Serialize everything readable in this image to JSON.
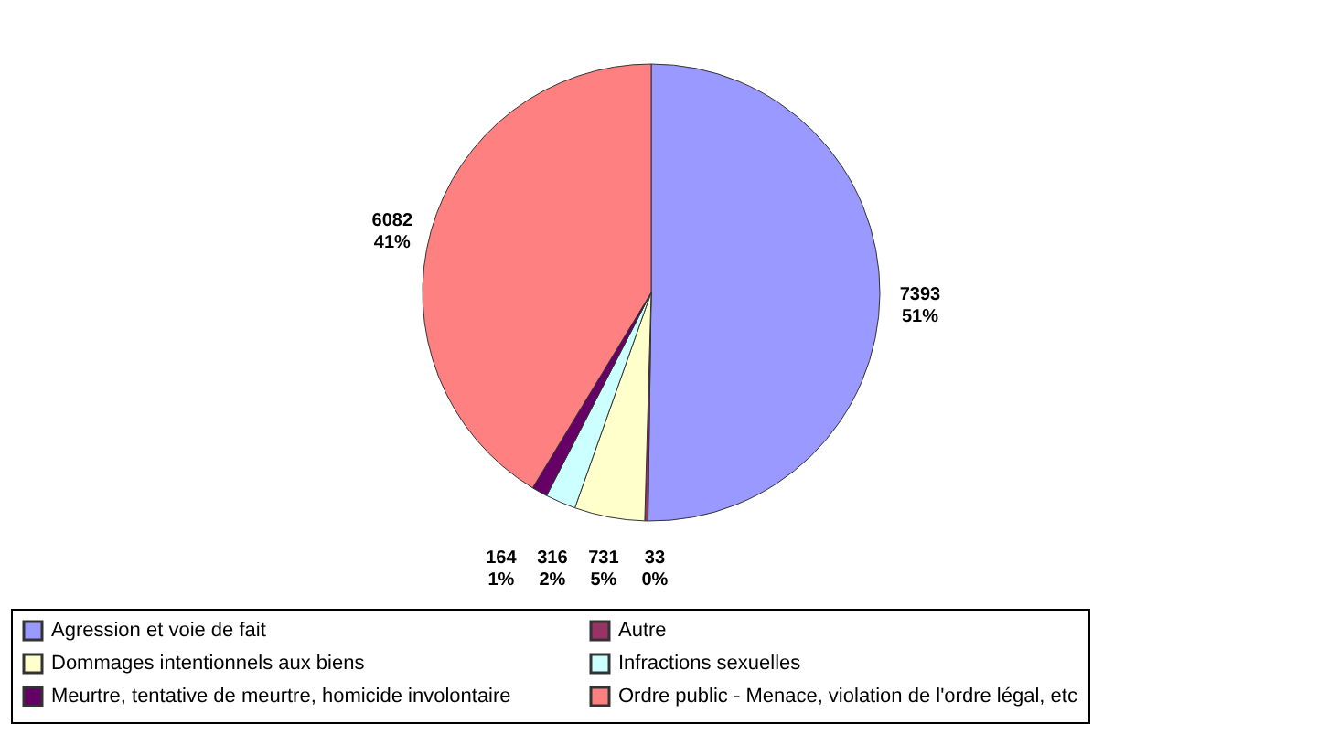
{
  "chart_data": {
    "type": "pie",
    "categories": [
      "Agression et voie de fait",
      "Autre",
      "Dommages intentionnels aux biens",
      "Infractions sexuelles",
      "Meurtre, tentative de meurtre, homicide involontaire",
      "Ordre public - Menace, violation de l'ordre légal, etc"
    ],
    "values": [
      7393,
      33,
      731,
      316,
      164,
      6082
    ],
    "colors": [
      "#9999ff",
      "#993366",
      "#ffffcc",
      "#ccffff",
      "#660066",
      "#ff8080"
    ],
    "value_labels": [
      "7393\n51%",
      "33\n0%",
      "731\n5%",
      "316\n2%",
      "164\n1%",
      "6082\n41%"
    ],
    "legend": "bottom"
  }
}
